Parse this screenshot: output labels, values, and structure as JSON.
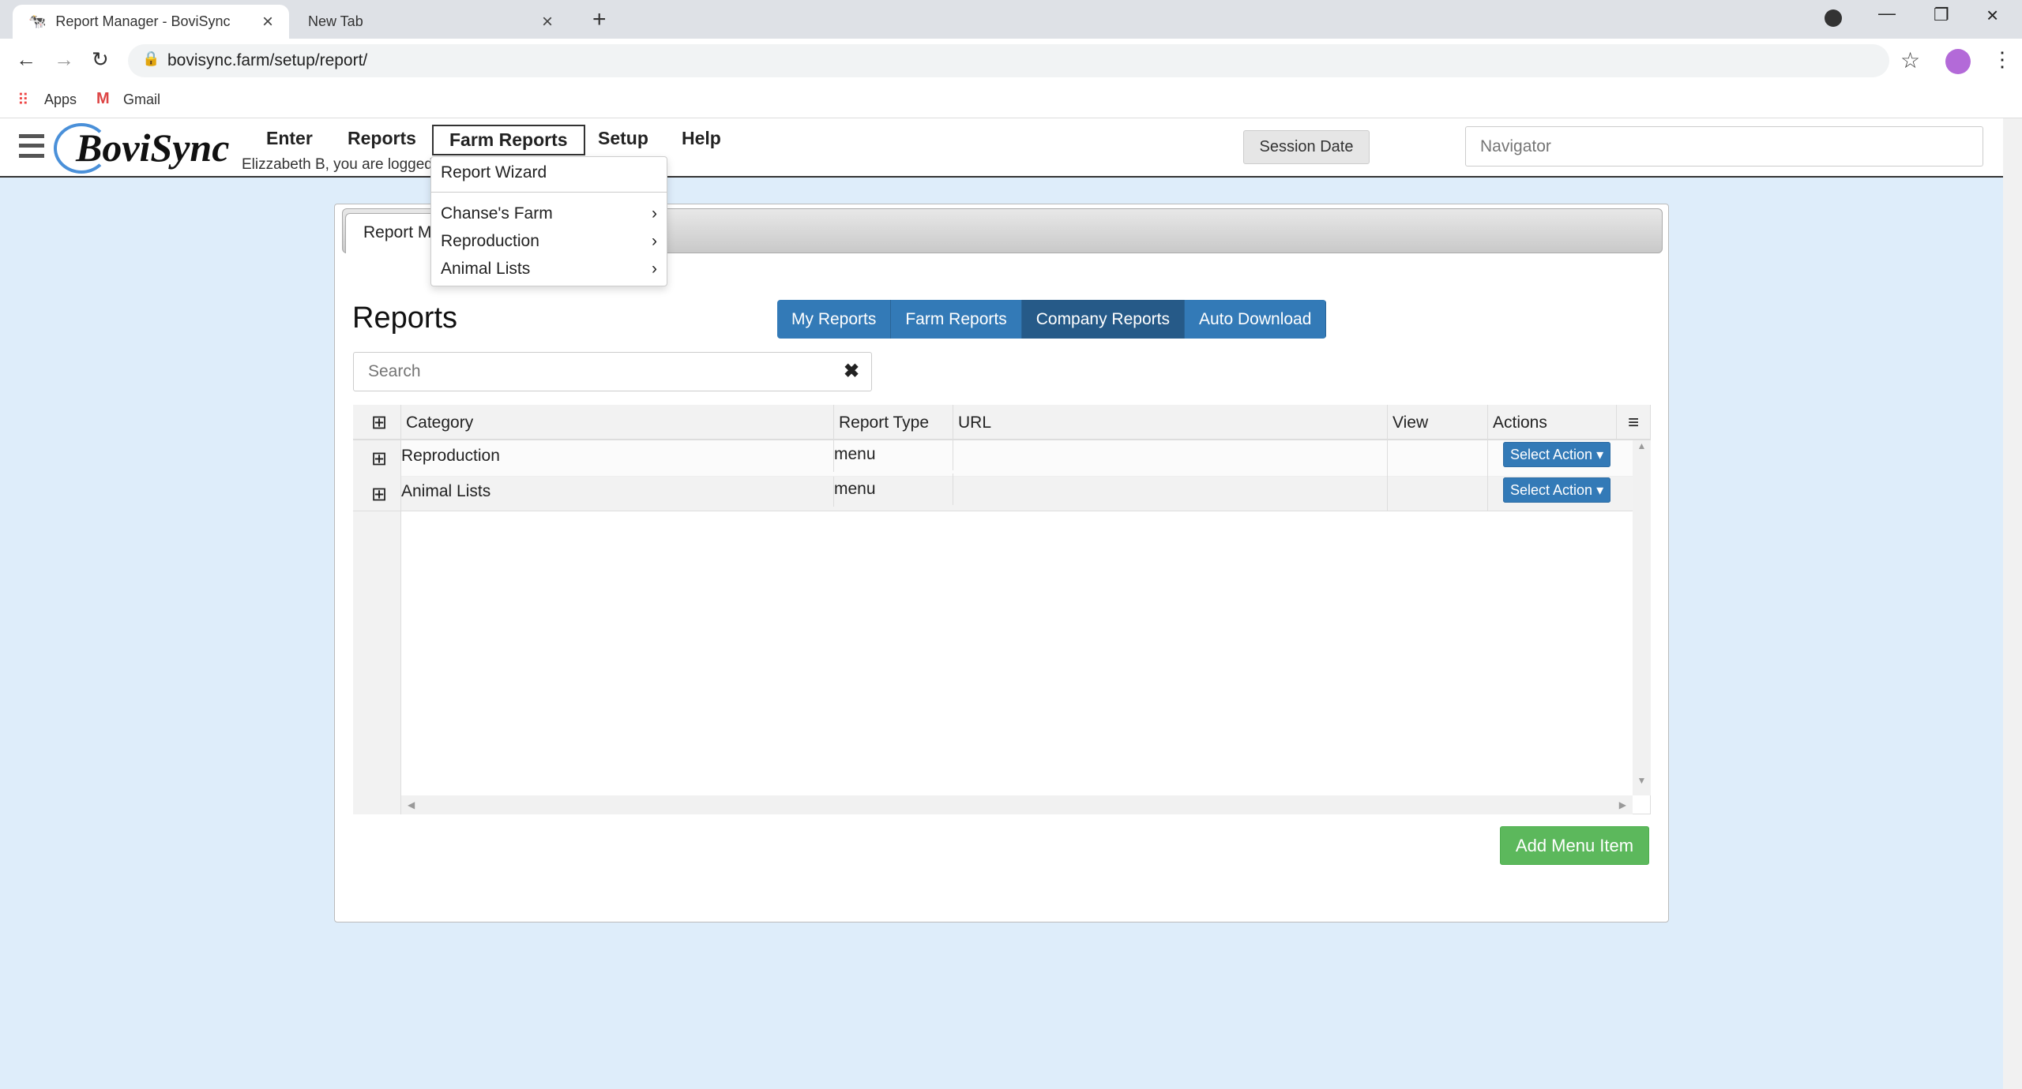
{
  "browser": {
    "tabs": [
      {
        "title": "Report Manager - BoviSync",
        "active": true
      },
      {
        "title": "New Tab",
        "active": false
      }
    ],
    "url": "bovisync.farm/setup/report/",
    "bookmarks": [
      "Apps",
      "Gmail"
    ]
  },
  "app": {
    "logo": "BoviSync",
    "nav": [
      "Enter",
      "Reports",
      "Farm Reports",
      "Setup",
      "Help"
    ],
    "selected_nav": "Farm Reports",
    "user_text": "Elizzabeth B, you are logged",
    "session_date_label": "Session Date",
    "navigator_placeholder": "Navigator"
  },
  "dropdown": {
    "items": [
      {
        "label": "Report Wizard",
        "submenu": false
      },
      {
        "label": "Chanse's Farm",
        "submenu": true
      },
      {
        "label": "Reproduction",
        "submenu": true
      },
      {
        "label": "Animal Lists",
        "submenu": true
      }
    ]
  },
  "panel": {
    "tab": "Report Manager",
    "title": "Reports",
    "buttons": [
      "My Reports",
      "Farm Reports",
      "Company Reports",
      "Auto Download"
    ],
    "active_button": "Company Reports",
    "search_placeholder": "Search",
    "table": {
      "columns": [
        "Category",
        "Report Type",
        "URL",
        "View",
        "Actions"
      ],
      "rows": [
        {
          "category": "Reproduction",
          "type": "menu",
          "url": "",
          "view": "",
          "action": "Select Action"
        },
        {
          "category": "Animal Lists",
          "type": "menu",
          "url": "",
          "view": "",
          "action": "Select Action"
        }
      ]
    },
    "add_button": "Add Menu Item"
  },
  "colors": {
    "primary": "#337ab7",
    "active": "#265a88",
    "success": "#5cb85c",
    "background": "#deedfa"
  }
}
